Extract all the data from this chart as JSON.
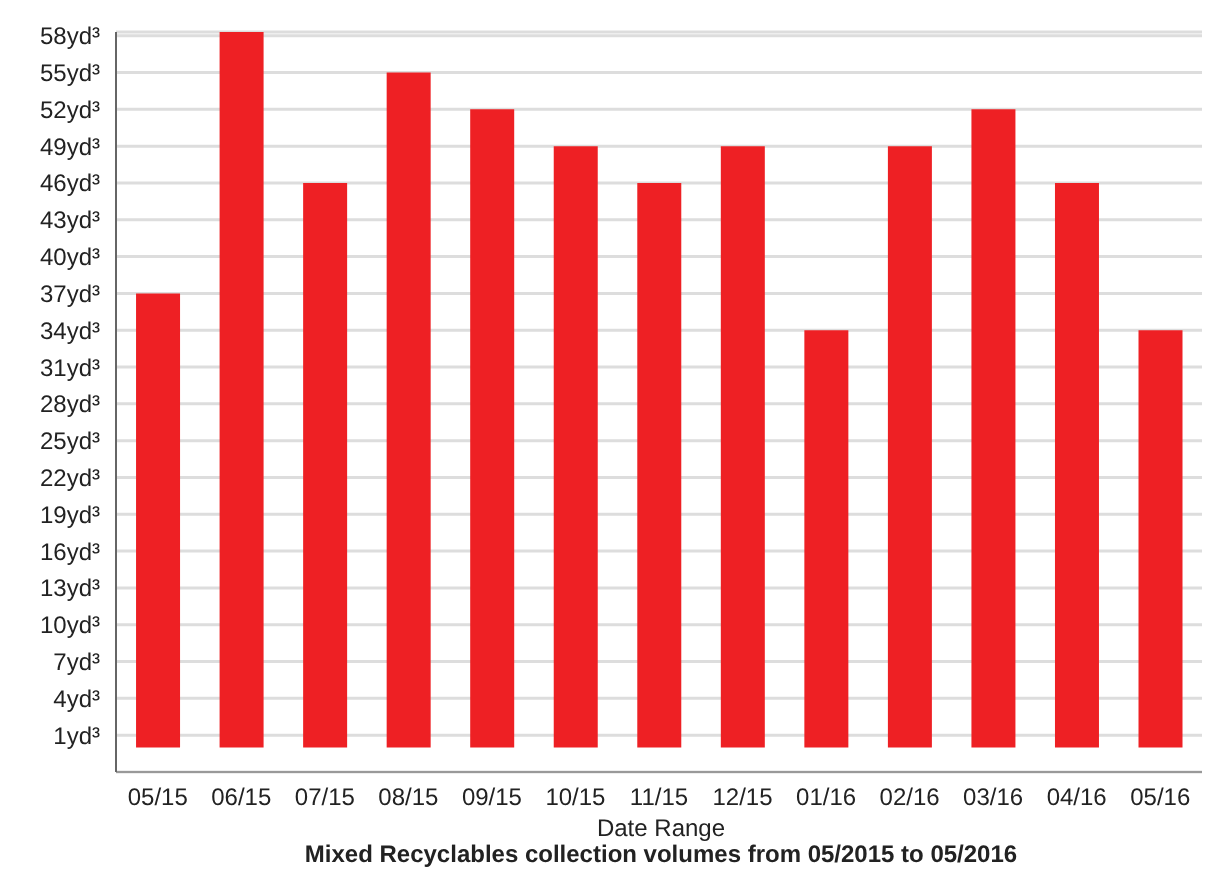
{
  "chart_data": {
    "type": "bar",
    "title": "Mixed Recyclables collection volumes from 05/2015 to 05/2016",
    "xlabel": "Date Range",
    "categories": [
      "05/15",
      "06/15",
      "07/15",
      "08/15",
      "09/15",
      "10/15",
      "11/15",
      "12/15",
      "01/16",
      "02/16",
      "03/16",
      "04/16",
      "05/16"
    ],
    "values": [
      37,
      58.3,
      46,
      55,
      52,
      49,
      46,
      49,
      34,
      49,
      52,
      46,
      34
    ],
    "color": "#ee2024",
    "ylim": [
      -2,
      58.3
    ],
    "yticks": [
      {
        "value": 1,
        "label": "1yd³"
      },
      {
        "value": 4,
        "label": "4yd³"
      },
      {
        "value": 7,
        "label": "7yd³"
      },
      {
        "value": 10,
        "label": "10yd³"
      },
      {
        "value": 13,
        "label": "13yd³"
      },
      {
        "value": 16,
        "label": "16yd³"
      },
      {
        "value": 19,
        "label": "19yd³"
      },
      {
        "value": 22,
        "label": "22yd³"
      },
      {
        "value": 25,
        "label": "25yd³"
      },
      {
        "value": 28,
        "label": "28yd³"
      },
      {
        "value": 31,
        "label": "31yd³"
      },
      {
        "value": 34,
        "label": "34yd³"
      },
      {
        "value": 37,
        "label": "37yd³"
      },
      {
        "value": 40,
        "label": "40yd³"
      },
      {
        "value": 43,
        "label": "43yd³"
      },
      {
        "value": 46,
        "label": "46yd³"
      },
      {
        "value": 49,
        "label": "49yd³"
      },
      {
        "value": 52,
        "label": "52yd³"
      },
      {
        "value": 55,
        "label": "55yd³"
      },
      {
        "value": 58,
        "label": "58yd³"
      }
    ],
    "grid": "y"
  }
}
